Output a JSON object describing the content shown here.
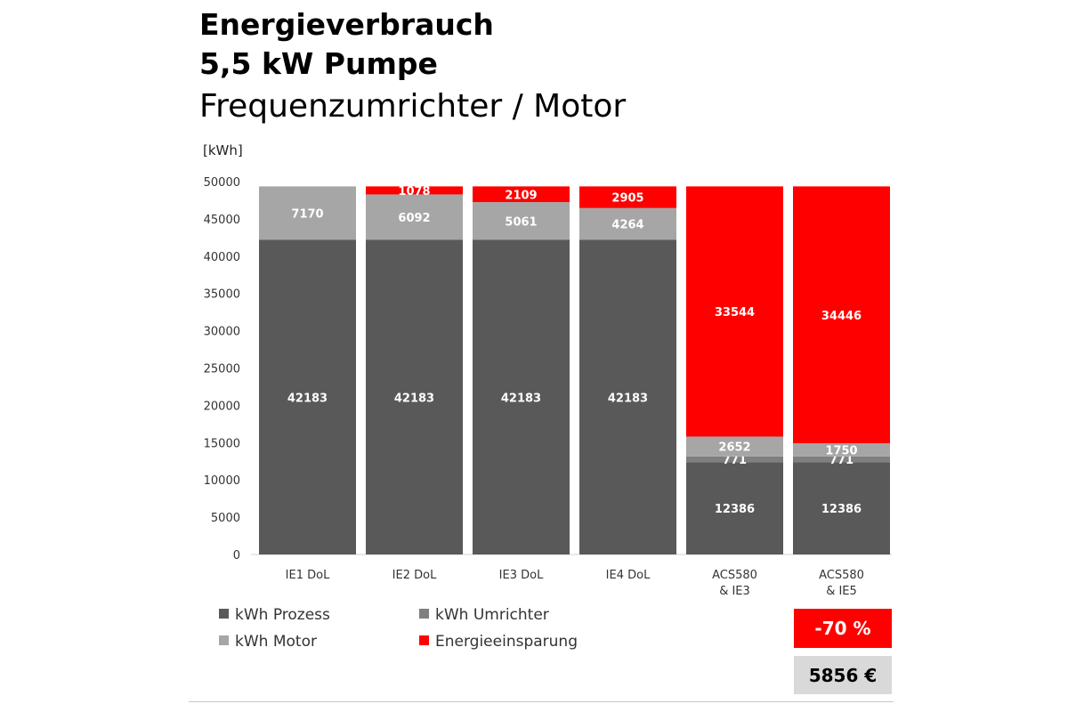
{
  "title": {
    "line1": "Energieverbrauch",
    "line2": "5,5 kW Pumpe",
    "line3": "Frequenzumrichter / Motor"
  },
  "colors": {
    "prozess": "#595959",
    "umrichter": "#7f7f7f",
    "motor": "#a6a6a6",
    "einsparung": "#ff0000",
    "savings_box": "#ff0000",
    "cost_box": "#d9d9d9"
  },
  "chart_data": {
    "type": "bar",
    "stacked": true,
    "unit_label": "[kWh]",
    "categories": [
      [
        "IE1 DoL"
      ],
      [
        "IE2 DoL"
      ],
      [
        "IE3 DoL"
      ],
      [
        "IE4 DoL"
      ],
      [
        "ACS580",
        "& IE3"
      ],
      [
        "ACS580",
        "& IE5"
      ]
    ],
    "ylim": [
      0,
      50000
    ],
    "yticks": [
      0,
      5000,
      10000,
      15000,
      20000,
      25000,
      30000,
      35000,
      40000,
      45000,
      50000
    ],
    "grid": false,
    "series": [
      {
        "name": "kWh Prozess",
        "color_key": "prozess",
        "values": [
          42183,
          42183,
          42183,
          42183,
          12386,
          12386
        ]
      },
      {
        "name": "kWh Umrichter",
        "color_key": "umrichter",
        "values": [
          0,
          0,
          0,
          0,
          771,
          771
        ]
      },
      {
        "name": "kWh Motor",
        "color_key": "motor",
        "values": [
          7170,
          6092,
          5061,
          4264,
          2652,
          1750
        ]
      },
      {
        "name": "Energieeinsparung",
        "color_key": "einsparung",
        "values": [
          0,
          1078,
          2109,
          2905,
          33544,
          34446
        ]
      }
    ]
  },
  "legend": {
    "prozess": "kWh Prozess",
    "umrichter": "kWh Umrichter",
    "motor": "kWh Motor",
    "einsparung": "Energieeinsparung"
  },
  "summary": {
    "savings_percent": "-70 %",
    "savings_cost": "5856 €"
  }
}
